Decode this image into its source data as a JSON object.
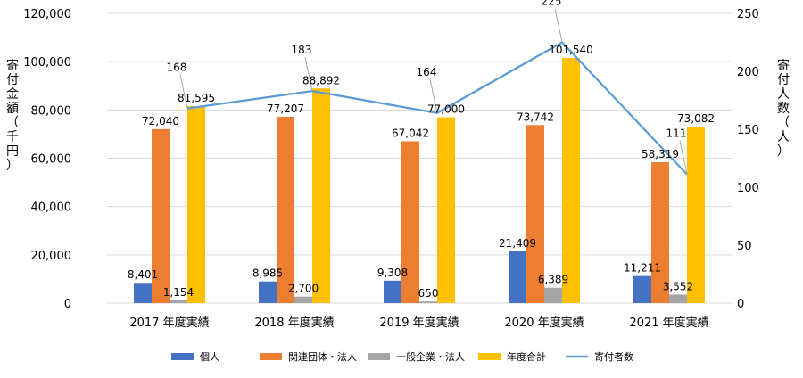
{
  "chart_data": {
    "type": "bar",
    "categories": [
      "2017 年度実績",
      "2018 年度実績",
      "2019 年度実績",
      "2020 年度実績",
      "2021 年度実績"
    ],
    "series": [
      {
        "name": "個人",
        "type": "bar",
        "axis": "left",
        "color": "#4472C4",
        "values": [
          8401,
          8985,
          9308,
          21409,
          11211
        ],
        "labels": [
          "8,401",
          "8,985",
          "9,308",
          "21,409",
          "11,211"
        ]
      },
      {
        "name": "関連団体・法人",
        "type": "bar",
        "axis": "left",
        "color": "#ED7D31",
        "values": [
          72040,
          77207,
          67042,
          73742,
          58319
        ],
        "labels": [
          "72,040",
          "77,207",
          "67,042",
          "73,742",
          "58,319"
        ]
      },
      {
        "name": "一般企業・法人",
        "type": "bar",
        "axis": "left",
        "color": "#A5A5A5",
        "values": [
          1154,
          2700,
          650,
          6389,
          3552
        ],
        "labels": [
          "1,154",
          "2,700",
          "650",
          "6,389",
          "3,552"
        ]
      },
      {
        "name": "年度合計",
        "type": "bar",
        "axis": "left",
        "color": "#FFC000",
        "values": [
          81595,
          88892,
          77000,
          101540,
          73082
        ],
        "labels": [
          "81,595",
          "88,892",
          "77,000",
          "101,540",
          "73,082"
        ]
      },
      {
        "name": "寄付者数",
        "type": "line",
        "axis": "right",
        "color": "#5B9BD5",
        "values": [
          168,
          183,
          164,
          225,
          111
        ],
        "labels": [
          "168",
          "183",
          "164",
          "225",
          "111"
        ]
      }
    ],
    "ylabel": "寄付金額（千円）",
    "y2label": "寄付人数（人）",
    "ylim": [
      0,
      120000
    ],
    "y2lim": [
      0,
      250
    ],
    "yticks": [
      "0",
      "20,000",
      "40,000",
      "60,000",
      "80,000",
      "100,000",
      "120,000"
    ],
    "y2ticks": [
      "0",
      "50",
      "100",
      "150",
      "200",
      "250"
    ],
    "grid": true,
    "legend": "bottom"
  }
}
